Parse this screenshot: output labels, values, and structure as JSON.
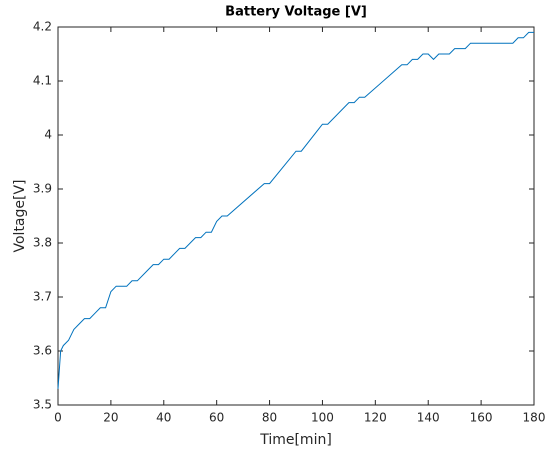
{
  "chart_data": {
    "type": "line",
    "title": "Battery Voltage [V]",
    "x_label": "Time[min]",
    "y_label": "Voltage[V]",
    "x": [
      0,
      1,
      2,
      4,
      5,
      6,
      8,
      10,
      12,
      14,
      16,
      18,
      20,
      22,
      26,
      28,
      30,
      34,
      36,
      38,
      40,
      42,
      44,
      46,
      48,
      52,
      54,
      56,
      58,
      60,
      62,
      64,
      78,
      80,
      90,
      92,
      100,
      102,
      110,
      112,
      114,
      116,
      130,
      132,
      134,
      136,
      138,
      140,
      142,
      144,
      148,
      150,
      154,
      156,
      172,
      174,
      176,
      178,
      180
    ],
    "values": [
      3.53,
      3.6,
      3.61,
      3.62,
      3.63,
      3.64,
      3.65,
      3.66,
      3.66,
      3.67,
      3.68,
      3.68,
      3.71,
      3.72,
      3.72,
      3.73,
      3.73,
      3.75,
      3.76,
      3.76,
      3.77,
      3.77,
      3.78,
      3.79,
      3.79,
      3.81,
      3.81,
      3.82,
      3.82,
      3.84,
      3.85,
      3.85,
      3.91,
      3.91,
      3.97,
      3.97,
      4.02,
      4.02,
      4.06,
      4.06,
      4.07,
      4.07,
      4.13,
      4.13,
      4.14,
      4.14,
      4.15,
      4.15,
      4.14,
      4.15,
      4.15,
      4.16,
      4.16,
      4.17,
      4.17,
      4.18,
      4.18,
      4.19,
      4.19
    ],
    "color": "#0072bd",
    "xlim": [
      0,
      180
    ],
    "xticks": [
      0,
      20,
      40,
      60,
      80,
      100,
      120,
      140,
      160,
      180
    ],
    "ylim": [
      3.5,
      4.2
    ],
    "yticks": [
      3.5,
      3.6,
      3.7,
      3.8,
      3.9,
      4,
      4.1,
      4.2
    ],
    "grid": false
  }
}
